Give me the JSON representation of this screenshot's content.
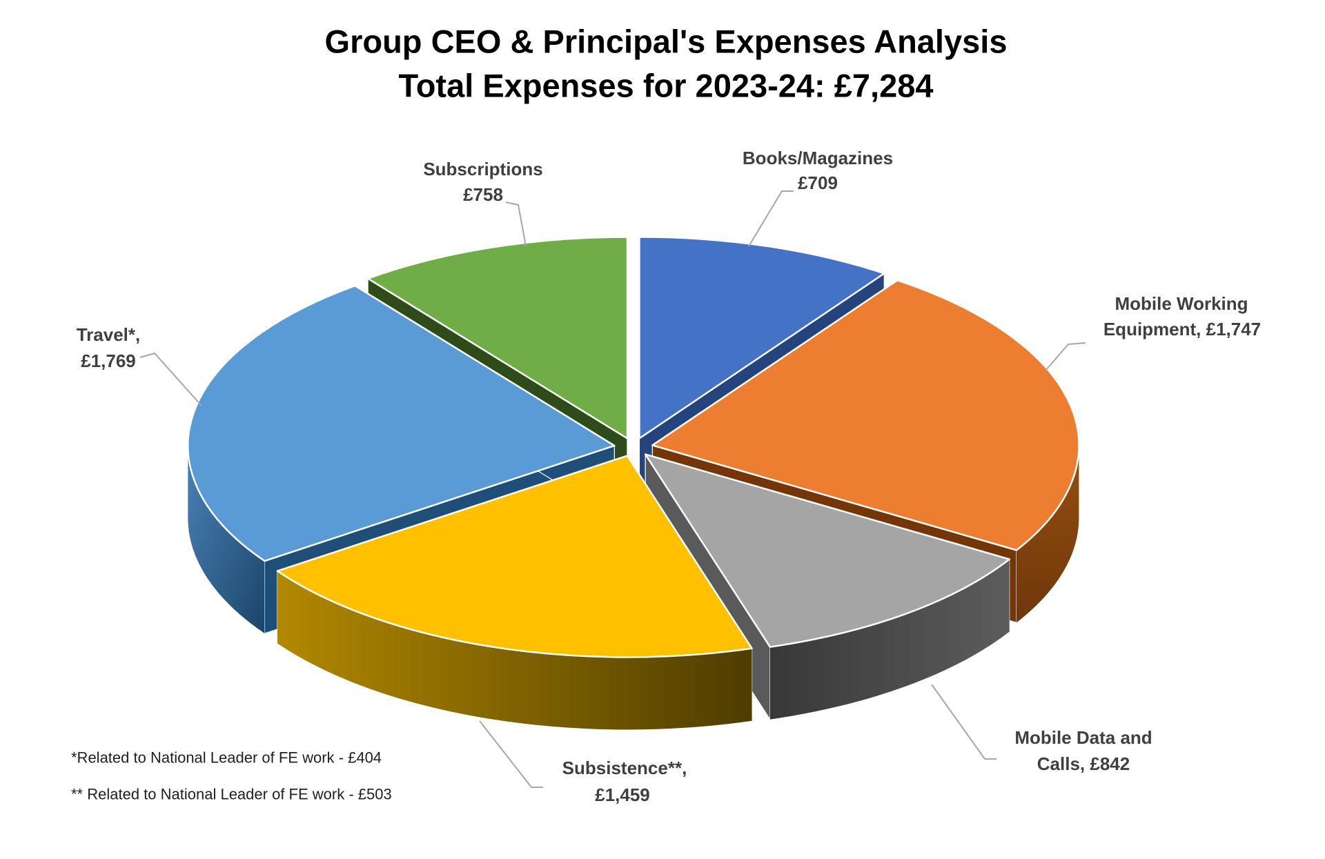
{
  "title": {
    "line1": "Group CEO & Principal's Expenses Analysis",
    "line2": "Total Expenses for 2023-24: £7,284"
  },
  "chart_data": {
    "type": "pie",
    "style": "3d-exploded",
    "title": "Group CEO & Principal's Expenses Analysis",
    "subtitle": "Total Expenses for 2023-24: £7,284",
    "total": 7284,
    "currency_symbol": "£",
    "period": "2023-24",
    "start_angle_deg": 0,
    "direction": "clockwise",
    "slices": [
      {
        "label": "Books/Magazines",
        "value": 709,
        "display_value": "£709",
        "label_lines": [
          "Books/Magazines",
          "£709"
        ],
        "color": "#4472C4",
        "side_color": "#25437C",
        "rim_colors": null,
        "rim_dir": null
      },
      {
        "label": "Mobile Working Equipment",
        "value": 1747,
        "display_value": "£1,747",
        "label_lines": [
          "Mobile Working",
          "Equipment, £1,747"
        ],
        "color": "#ED7D31",
        "side_color": "#743608",
        "rim_colors": [
          "#94500F",
          "#70370B"
        ],
        "rim_dir": [
          0,
          0,
          0,
          1
        ]
      },
      {
        "label": "Mobile Data and Calls",
        "value": 842,
        "display_value": "£842",
        "label_lines": [
          "Mobile Data and",
          "Calls, £842"
        ],
        "color": "#A5A5A5",
        "side_color": "#5A5A5A",
        "rim_colors": [
          "#383838",
          "#5C5C5C"
        ],
        "rim_dir": [
          0,
          0,
          1,
          0
        ]
      },
      {
        "label": "Subsistence**",
        "value": 1459,
        "display_value": "£1,459",
        "label_lines": [
          "Subsistence**,",
          "£1,459"
        ],
        "color": "#FFC000",
        "side_color": "#6B5300",
        "rim_colors": [
          "#B18800",
          "#4F3D00"
        ],
        "rim_dir": [
          0,
          0,
          1,
          0
        ]
      },
      {
        "label": "Travel*",
        "value": 1769,
        "display_value": "£1,769",
        "label_lines": [
          "Travel*,",
          "£1,769"
        ],
        "color": "#5B9BD5",
        "side_color": "#1F4E79",
        "rim_colors": [
          "#4B82B6",
          "#1B4569"
        ],
        "rim_dir": [
          0,
          0,
          1,
          1
        ]
      },
      {
        "label": "Subscriptions",
        "value": 758,
        "display_value": "£758",
        "label_lines": [
          "Subscriptions",
          "£758"
        ],
        "color": "#70AD47",
        "side_color": "#2E4B1A",
        "rim_colors": null,
        "rim_dir": null
      }
    ],
    "footnotes": [
      "*Related to National Leader of FE work - £404",
      "** Related to National Leader of FE work - £503"
    ],
    "leader_line_color": "#A6A6A6",
    "label_color": "#3F3F3F",
    "legend": "none",
    "grid": false
  }
}
